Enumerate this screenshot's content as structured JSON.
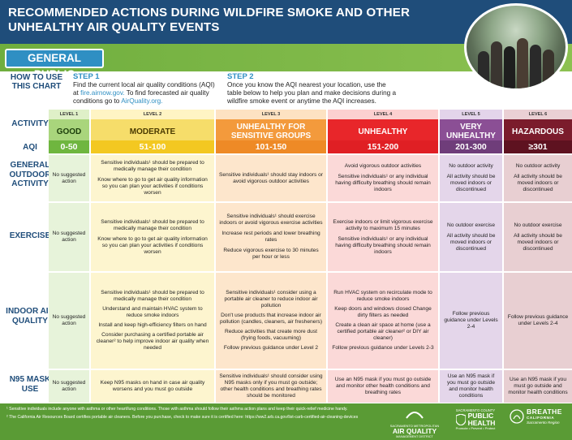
{
  "header": {
    "title": "RECOMMENDED ACTIONS DURING WILDFIRE SMOKE AND OTHER UNHEALTHY AIR QUALITY EVENTS"
  },
  "audience": "GENERAL PUBLIC",
  "howto": {
    "label": "HOW TO USE THIS CHART",
    "step1_label": "STEP 1",
    "step1_text": "Find the current local air quality conditions (AQI) at",
    "step1_link1": "fire.airnow.gov.",
    "step1_text2": "To find forecasted air quality conditions go to",
    "step1_link2": "AirQuality.org.",
    "step2_label": "STEP 2",
    "step2_text": "Once you know the AQI nearest your location, use the table below to help you plan and make decisions during a wildfire smoke event or anytime the AQI increases."
  },
  "row_labels": {
    "activity": "ACTIVITY",
    "aqi": "AQI",
    "outdoor": "GENERAL OUTDOOR ACTIVITY",
    "exercise": "EXERCISE",
    "indoor": "INDOOR AIR QUALITY",
    "n95": "N95 MASK USE"
  },
  "levels": [
    {
      "level": "LEVEL 1",
      "name": "GOOD",
      "aqi": "0-50"
    },
    {
      "level": "LEVEL 2",
      "name": "MODERATE",
      "aqi": "51-100"
    },
    {
      "level": "LEVEL 3",
      "name": "UNHEALTHY FOR SENSITIVE GROUPS",
      "aqi": "101-150"
    },
    {
      "level": "LEVEL 4",
      "name": "UNHEALTHY",
      "aqi": "151-200"
    },
    {
      "level": "LEVEL 5",
      "name": "VERY UNHEALTHY",
      "aqi": "201-300"
    },
    {
      "level": "LEVEL 6",
      "name": "HAZARDOUS",
      "aqi": "≥301"
    }
  ],
  "outdoor": [
    [
      "No suggested action"
    ],
    [
      "Sensitive individuals¹ should be prepared to medically manage their condition",
      "Know where to go to get air quality information so you can plan your activities if conditions worsen"
    ],
    [
      "Sensitive individuals¹ should stay indoors or avoid vigorous outdoor activities"
    ],
    [
      "Avoid vigorous outdoor activities",
      "Sensitive individuals¹ or any individual having difficulty breathing should remain indoors"
    ],
    [
      "No outdoor activity",
      "All activity should be moved indoors or discontinued"
    ],
    [
      "No outdoor activity",
      "All activity should be moved indoors or discontinued"
    ]
  ],
  "exercise": [
    [
      "No suggested action"
    ],
    [
      "Sensitive individuals¹ should be prepared to medically manage their condition",
      "Know where to go to get air quality information so you can plan your activities if conditions worsen"
    ],
    [
      "Sensitive individuals¹ should exercise indoors or avoid vigorous exercise activities",
      "Increase rest periods and lower breathing rates",
      "Reduce vigorous exercise to 30 minutes per hour or less"
    ],
    [
      "Exercise indoors or limit vigorous exercise activity to maximum 15 minutes",
      "Sensitive individuals¹ or any individual having difficulty breathing should remain indoors"
    ],
    [
      "No outdoor exercise",
      "All activity should be moved indoors or discontinued"
    ],
    [
      "No outdoor exercise",
      "All activity should be moved indoors or discontinued"
    ]
  ],
  "indoor": [
    [
      "No suggested action"
    ],
    [
      "Sensitive individuals¹ should be prepared to medically manage their condition",
      "Understand and maintain HVAC system to reduce smoke indoors",
      "Install and keep high-efficiency filters on hand",
      "Consider purchasing a certified portable air cleaner² to help improve indoor air quality when needed"
    ],
    [
      "Sensitive individuals¹ consider using a portable air cleaner to reduce indoor air pollution",
      "Don't use products that increase indoor air pollution (candles, cleaners, air fresheners)",
      "Reduce activities that create more dust (frying foods, vacuuming)",
      "Follow previous guidance under Level 2"
    ],
    [
      "Run HVAC system on recirculate mode to reduce smoke indoors",
      "Keep doors and windows closed Change dirty filters as needed",
      "Create a clean air space at home (use a certified portable air cleaner² or DIY air cleaner)",
      "Follow previous guidance under Levels 2-3"
    ],
    [
      "Follow previous guidance under Levels 2-4"
    ],
    [
      "Follow previous guidance under Levels 2-4"
    ]
  ],
  "n95": [
    [
      "No suggested action"
    ],
    [
      "Keep N95 masks on hand in case air quality worsens and you must go outside"
    ],
    [
      "Sensitive individuals¹ should consider using N95 masks only if you must go outside; other health conditions and breathing rates should be monitored"
    ],
    [
      "Use an N95 mask if you must go outside and monitor other health conditions and breathing rates"
    ],
    [
      "Use an N95 mask if you must go outside and monitor health conditions"
    ],
    [
      "Use an N95 mask if you must go outside and monitor health conditions"
    ]
  ],
  "footnotes": [
    "¹ Sensitive individuals include anyone with asthma or other heart/lung conditions. Those with asthma should follow their asthma action plans and keep their quick-relief medicine handy.",
    "² The California Air Resources Board certifies portable air cleaners. Before you purchase, check to make sure it is certified here: https://ww2.arb.ca.gov/list-carb-certified-air-cleaning-devices"
  ],
  "logos": {
    "aq_small": "SACRAMENTO METROPOLITAN",
    "aq_main": "AIR QUALITY",
    "aq_sub": "MANAGEMENT DISTRICT",
    "ph_small": "SACRAMENTO COUNTY",
    "ph_main1": "PUBLIC",
    "ph_main2": "HEALTH",
    "ph_sub": "Promote • Prevent • Protect",
    "br_main": "BREATHE",
    "br_state": "CALIFORNIA",
    "br_sub": "Sacramento Region"
  },
  "colors": {
    "header": "#1f4d7a",
    "good": "#6fb63f",
    "moderate": "#f3d23c",
    "usg": "#f39a3c",
    "unhealthy": "#e8262a",
    "very_unhealthy": "#8b4f95",
    "hazardous": "#7b1c2c"
  }
}
